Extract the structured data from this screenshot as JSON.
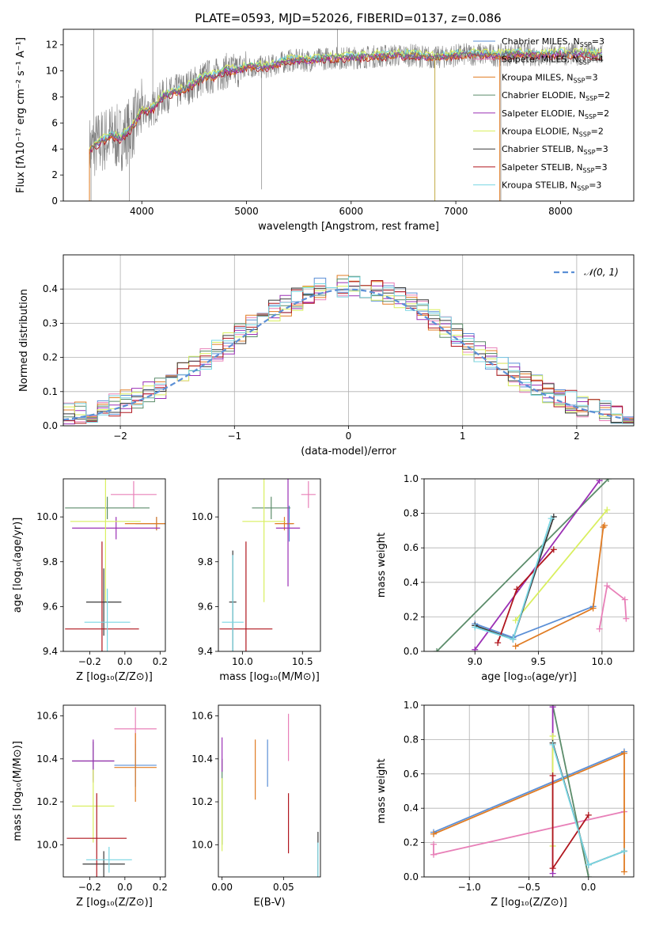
{
  "title": "PLATE=0593, MJD=52026, FIBERID=0137, z=0.086",
  "colors": {
    "gray": "#808080",
    "orange": "#e07b22",
    "darkgreen": "#5b8c6a",
    "purple": "#9b30b5",
    "lime": "#d9ef5f",
    "dark": "#3a3a3a",
    "red": "#b0161e",
    "cyan": "#78d6e3",
    "blue": "#5b8fd6",
    "pink": "#e880b8"
  },
  "chart_data": [
    {
      "id": "spectrum",
      "type": "line",
      "xlabel": "wavelength [Angstrom, rest frame]",
      "ylabel": "Flux [fλ10⁻¹⁷ erg cm⁻² s⁻¹ A⁻¹]",
      "xlim": [
        3250,
        8700
      ],
      "ylim": [
        0,
        13.2
      ],
      "xticks": [
        4000,
        5000,
        6000,
        7000,
        8000
      ],
      "yticks": [
        0,
        2,
        4,
        6,
        8,
        10,
        12
      ],
      "legend_position": "top-right",
      "legend": [
        {
          "label": "Chabrier MILES, N",
          "sub": "SSP",
          "tail": "=3",
          "color": "#5b8fd6"
        },
        {
          "label": "Salpeter MILES, N",
          "sub": "SSP",
          "tail": "=4",
          "color": "#e880b8"
        },
        {
          "label": "Kroupa MILES, N",
          "sub": "SSP",
          "tail": "=3",
          "color": "#e07b22"
        },
        {
          "label": "Chabrier ELODIE, N",
          "sub": "SSP",
          "tail": "=2",
          "color": "#5b8c6a"
        },
        {
          "label": "Salpeter ELODIE, N",
          "sub": "SSP",
          "tail": "=2",
          "color": "#9b30b5"
        },
        {
          "label": "Kroupa ELODIE, N",
          "sub": "SSP",
          "tail": "=2",
          "color": "#d9ef5f"
        },
        {
          "label": "Chabrier STELIB, N",
          "sub": "SSP",
          "tail": "=3",
          "color": "#3a3a3a"
        },
        {
          "label": "Salpeter STELIB, N",
          "sub": "SSP",
          "tail": "=3",
          "color": "#b0161e"
        },
        {
          "label": "Kroupa STELIB, N",
          "sub": "SSP",
          "tail": "=3",
          "color": "#78d6e3"
        }
      ],
      "data_envelope": {
        "x": [
          3500,
          3600,
          3700,
          3800,
          3900,
          4000,
          4100,
          4200,
          4300,
          4400,
          4500,
          4600,
          4700,
          4800,
          4900,
          5000,
          5200,
          5400,
          5600,
          5800,
          6000,
          6200,
          6400,
          6600,
          6800,
          7000,
          7200,
          7400,
          7600,
          7800,
          8000,
          8200,
          8400
        ],
        "y": [
          4.0,
          4.5,
          5.0,
          4.8,
          5.6,
          6.9,
          7.0,
          8.0,
          8.3,
          8.6,
          9.0,
          9.5,
          9.6,
          10.0,
          10.0,
          10.3,
          10.3,
          10.8,
          10.8,
          11.0,
          11.0,
          11.1,
          11.2,
          11.2,
          11.0,
          11.2,
          11.3,
          11.2,
          11.3,
          11.2,
          11.3,
          11.3,
          11.2
        ]
      }
    },
    {
      "id": "residuals",
      "type": "line",
      "xlabel": "(data-model)/error",
      "ylabel": "Normed distribution",
      "xlim": [
        -2.5,
        2.5
      ],
      "ylim": [
        0,
        0.5
      ],
      "xticks": [
        -2,
        -1,
        0,
        1,
        2
      ],
      "yticks": [
        0.0,
        0.1,
        0.2,
        0.3,
        0.4
      ],
      "legend_position": "top-right",
      "legend_label": "𝒩(0, 1)",
      "model": {
        "name": "N(0,1)",
        "mean": 0,
        "sigma": 1
      }
    },
    {
      "id": "age_vs_Z",
      "type": "scatter",
      "xlabel": "Z [log₁₀(Z/Z⊙)]",
      "ylabel": "age  [log₁₀(age/yr)]",
      "xlim": [
        -0.35,
        0.23
      ],
      "ylim": [
        9.4,
        10.17
      ],
      "xticks": [
        -0.2,
        0.0,
        0.2
      ],
      "yticks": [
        9.4,
        9.6,
        9.8,
        10.0
      ],
      "points": [
        {
          "color": "#5b8fd6",
          "x": 0.18,
          "xerr": 0.12,
          "y": 9.97,
          "yerr": 0.03
        },
        {
          "color": "#e880b8",
          "x": 0.05,
          "xerr": 0.13,
          "y": 10.1,
          "yerr": 0.06
        },
        {
          "color": "#e07b22",
          "x": 0.18,
          "xerr": 0.18,
          "y": 9.97,
          "yerr": 0.03
        },
        {
          "color": "#5b8c6a",
          "x": -0.1,
          "xerr": 0.24,
          "y": 10.04,
          "yerr": 0.05
        },
        {
          "color": "#9b30b5",
          "x": -0.05,
          "xerr": 0.25,
          "y": 9.95,
          "yerr": 0.05
        },
        {
          "color": "#d9ef5f",
          "x": -0.11,
          "xerr": 0.2,
          "y": 9.98,
          "yerr": 0.36
        },
        {
          "color": "#3a3a3a",
          "x": -0.12,
          "xerr": 0.1,
          "y": 9.62,
          "yerr": 0.15
        },
        {
          "color": "#b0161e",
          "x": -0.13,
          "xerr": 0.21,
          "y": 9.5,
          "yerr": 0.39
        },
        {
          "color": "#78d6e3",
          "x": -0.1,
          "xerr": 0.13,
          "y": 9.53,
          "yerr": 0.15
        }
      ]
    },
    {
      "id": "age_vs_mass",
      "type": "scatter",
      "xlabel": "mass [log₁₀(M/M⊙)]",
      "ylabel": "",
      "xlim": [
        9.8,
        10.65
      ],
      "ylim": [
        9.4,
        10.17
      ],
      "xticks": [
        10.0,
        10.5
      ],
      "yticks": [
        9.4,
        9.6,
        9.8,
        10.0
      ],
      "points": [
        {
          "color": "#5b8fd6",
          "x": 10.39,
          "xerr": 0.03,
          "y": 9.97,
          "yerr": 0.08
        },
        {
          "color": "#e880b8",
          "x": 10.55,
          "xerr": 0.06,
          "y": 10.1,
          "yerr": 0.06
        },
        {
          "color": "#e07b22",
          "x": 10.35,
          "xerr": 0.08,
          "y": 9.97,
          "yerr": 0.03
        },
        {
          "color": "#5b8c6a",
          "x": 10.24,
          "xerr": 0.16,
          "y": 10.04,
          "yerr": 0.05
        },
        {
          "color": "#9b30b5",
          "x": 10.38,
          "xerr": 0.1,
          "y": 9.95,
          "yerr": 0.26
        },
        {
          "color": "#d9ef5f",
          "x": 10.18,
          "xerr": 0.18,
          "y": 9.98,
          "yerr": 0.36
        },
        {
          "color": "#3a3a3a",
          "x": 9.92,
          "xerr": 0.03,
          "y": 9.62,
          "yerr": 0.23
        },
        {
          "color": "#b0161e",
          "x": 10.03,
          "xerr": 0.22,
          "y": 9.5,
          "yerr": 0.39
        },
        {
          "color": "#78d6e3",
          "x": 9.92,
          "xerr": 0.09,
          "y": 9.53,
          "yerr": 0.3
        }
      ]
    },
    {
      "id": "mass_weight_vs_age",
      "type": "line",
      "xlabel": "age  [log₁₀(age/yr)]",
      "ylabel": "mass weight",
      "xlim": [
        8.6,
        10.25
      ],
      "ylim": [
        0,
        1
      ],
      "xticks": [
        9.0,
        9.5,
        10.0
      ],
      "yticks": [
        0.0,
        0.2,
        0.4,
        0.6,
        0.8,
        1.0
      ],
      "series": [
        {
          "color": "#5b8fd6",
          "x": [
            9.0,
            9.3,
            9.93
          ],
          "y": [
            0.16,
            0.08,
            0.26
          ]
        },
        {
          "color": "#e880b8",
          "x": [
            9.98,
            10.04,
            10.18,
            10.19
          ],
          "y": [
            0.13,
            0.38,
            0.3,
            0.19
          ]
        },
        {
          "color": "#e07b22",
          "x": [
            9.32,
            9.93,
            10.01,
            10.02
          ],
          "y": [
            0.03,
            0.25,
            0.72,
            0.73
          ]
        },
        {
          "color": "#5b8c6a",
          "x": [
            8.7,
            10.05
          ],
          "y": [
            0.0,
            1.0
          ]
        },
        {
          "color": "#9b30b5",
          "x": [
            9.0,
            9.98
          ],
          "y": [
            0.01,
            0.99
          ]
        },
        {
          "color": "#d9ef5f",
          "x": [
            9.32,
            10.04
          ],
          "y": [
            0.18,
            0.82
          ]
        },
        {
          "color": "#3a3a3a",
          "x": [
            9.0,
            9.3,
            9.62
          ],
          "y": [
            0.15,
            0.07,
            0.78
          ]
        },
        {
          "color": "#b0161e",
          "x": [
            9.18,
            9.33,
            9.62
          ],
          "y": [
            0.05,
            0.36,
            0.59
          ]
        },
        {
          "color": "#78d6e3",
          "x": [
            9.0,
            9.3,
            9.6
          ],
          "y": [
            0.14,
            0.07,
            0.77
          ]
        }
      ]
    },
    {
      "id": "mass_vs_Z",
      "type": "scatter",
      "xlabel": "Z [log₁₀(Z/Z⊙)]",
      "ylabel": "mass [log₁₀(M/M⊙)]",
      "xlim": [
        -0.35,
        0.23
      ],
      "ylim": [
        9.85,
        10.65
      ],
      "xticks": [
        -0.2,
        0.0,
        0.2
      ],
      "yticks": [
        10.0,
        10.2,
        10.4,
        10.6
      ],
      "points": [
        {
          "color": "#5b8fd6",
          "x": 0.06,
          "xerr": 0.12,
          "y": 10.37,
          "yerr": 0.1
        },
        {
          "color": "#e880b8",
          "x": 0.06,
          "xerr": 0.12,
          "y": 10.54,
          "yerr": 0.1
        },
        {
          "color": "#e07b22",
          "x": 0.06,
          "xerr": 0.12,
          "y": 10.36,
          "yerr": 0.16
        },
        {
          "color": "#5b8c6a",
          "x": -0.18,
          "xerr": 0.12,
          "y": 10.39,
          "yerr": 0.09
        },
        {
          "color": "#9b30b5",
          "x": -0.18,
          "xerr": 0.12,
          "y": 10.39,
          "yerr": 0.1
        },
        {
          "color": "#d9ef5f",
          "x": -0.18,
          "xerr": 0.12,
          "y": 10.18,
          "yerr": 0.17
        },
        {
          "color": "#3a3a3a",
          "x": -0.12,
          "xerr": 0.12,
          "y": 9.91,
          "yerr": 0.06
        },
        {
          "color": "#b0161e",
          "x": -0.16,
          "xerr": 0.17,
          "y": 10.03,
          "yerr": 0.21
        },
        {
          "color": "#78d6e3",
          "x": -0.09,
          "xerr": 0.13,
          "y": 9.93,
          "yerr": 0.06
        }
      ]
    },
    {
      "id": "mass_vs_EBV",
      "type": "scatter",
      "xlabel": "E(B-V)",
      "ylabel": "",
      "xlim": [
        -0.003,
        0.08
      ],
      "ylim": [
        9.85,
        10.65
      ],
      "xticks": [
        0.0,
        0.05
      ],
      "yticks": [
        10.0,
        10.2,
        10.4,
        10.6
      ],
      "points": [
        {
          "color": "#5b8fd6",
          "x": 0.037,
          "y": 10.38,
          "yerr": 0.11
        },
        {
          "color": "#e880b8",
          "x": 0.054,
          "y": 10.5,
          "yerr": 0.11
        },
        {
          "color": "#e07b22",
          "x": 0.027,
          "y": 10.35,
          "yerr": 0.14
        },
        {
          "color": "#5b8c6a",
          "x": 0.0,
          "y": 10.2,
          "yerr": 0.2
        },
        {
          "color": "#9b30b5",
          "x": 0.0,
          "y": 10.42,
          "yerr": 0.08
        },
        {
          "color": "#d9ef5f",
          "x": 0.0,
          "y": 10.14,
          "yerr": 0.17
        },
        {
          "color": "#3a3a3a",
          "x": 0.078,
          "y": 9.95,
          "yerr": 0.11
        },
        {
          "color": "#b0161e",
          "x": 0.054,
          "y": 10.1,
          "yerr": 0.14
        },
        {
          "color": "#78d6e3",
          "x": 0.078,
          "y": 9.93,
          "yerr": 0.08
        }
      ]
    },
    {
      "id": "mass_weight_vs_Z",
      "type": "line",
      "xlabel": "Z [log₁₀(Z/Z⊙)]",
      "ylabel": "mass weight",
      "xlim": [
        -1.38,
        0.38
      ],
      "ylim": [
        0,
        1
      ],
      "xticks": [
        -1.0,
        -0.5,
        0.0
      ],
      "yticks": [
        0.0,
        0.2,
        0.4,
        0.6,
        0.8,
        1.0
      ],
      "series": [
        {
          "color": "#5b8fd6",
          "x": [
            -1.3,
            0.3
          ],
          "y": [
            0.26,
            0.73
          ]
        },
        {
          "color": "#e880b8",
          "x": [
            -1.3,
            -1.3,
            0.3
          ],
          "y": [
            0.19,
            0.13,
            0.38
          ]
        },
        {
          "color": "#e07b22",
          "x": [
            -1.3,
            0.3,
            0.3
          ],
          "y": [
            0.25,
            0.72,
            0.03
          ]
        },
        {
          "color": "#5b8c6a",
          "x": [
            -0.3,
            0.0
          ],
          "y": [
            1.0,
            0.0
          ]
        },
        {
          "color": "#9b30b5",
          "x": [
            -0.3,
            -0.3
          ],
          "y": [
            0.99,
            0.02
          ]
        },
        {
          "color": "#d9ef5f",
          "x": [
            -0.3,
            -0.3
          ],
          "y": [
            0.82,
            0.18
          ]
        },
        {
          "color": "#3a3a3a",
          "x": [
            -0.3,
            0.0,
            0.3
          ],
          "y": [
            0.78,
            0.07,
            0.15
          ]
        },
        {
          "color": "#b0161e",
          "x": [
            -0.3,
            -0.3,
            0.0
          ],
          "y": [
            0.59,
            0.05,
            0.36
          ]
        },
        {
          "color": "#78d6e3",
          "x": [
            -0.3,
            0.0,
            0.3
          ],
          "y": [
            0.77,
            0.07,
            0.15
          ]
        }
      ]
    }
  ]
}
